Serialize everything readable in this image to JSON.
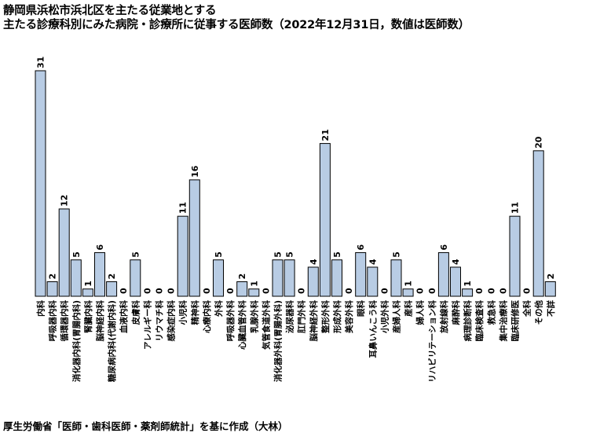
{
  "chart_data": {
    "type": "bar",
    "title": "静岡県浜松市浜北区を主たる従業地とする",
    "subtitle": "主たる診療科別にみた病院・診療所に従事する医師数（2022年12月31日，数値は医師数）",
    "source": "厚生労働省「医師・歯科医師・薬剤師統計」を基に作成（大林）",
    "xlabel": "",
    "ylabel": "",
    "ylim": [
      0,
      31
    ],
    "grid": false,
    "categories": [
      "内科",
      "呼吸器内科",
      "循環器内科",
      "消化器内科(胃腸内科)",
      "腎臓内科",
      "脳神経内科",
      "糖尿病内科(代謝内科)",
      "血液内科",
      "皮膚科",
      "アレルギー科",
      "リウマチ科",
      "感染症内科",
      "小児科",
      "精神科",
      "心療内科",
      "外科",
      "呼吸器外科",
      "心臓血管外科",
      "乳腺外科",
      "気管食道外科",
      "消化器外科(胃腸外科)",
      "泌尿器科",
      "肛門外科",
      "脳神経外科",
      "整形外科",
      "形成外科",
      "美容外科",
      "眼科",
      "耳鼻いんこう科",
      "小児外科",
      "産婦人科",
      "産科",
      "婦人科",
      "リハビリテーション科",
      "放射線科",
      "麻酔科",
      "病理診断科",
      "臨床検査科",
      "救急科",
      "集中治療科",
      "臨床研修医",
      "全科",
      "その他",
      "不詳"
    ],
    "values": [
      31,
      2,
      12,
      5,
      1,
      6,
      2,
      0,
      5,
      0,
      0,
      0,
      11,
      16,
      0,
      5,
      0,
      2,
      1,
      0,
      5,
      5,
      0,
      4,
      21,
      5,
      0,
      6,
      4,
      0,
      5,
      1,
      0,
      0,
      6,
      4,
      1,
      0,
      0,
      0,
      11,
      0,
      20,
      2
    ],
    "colors": {
      "bar_fill": "#b8cce4",
      "bar_stroke": "#000000"
    }
  }
}
